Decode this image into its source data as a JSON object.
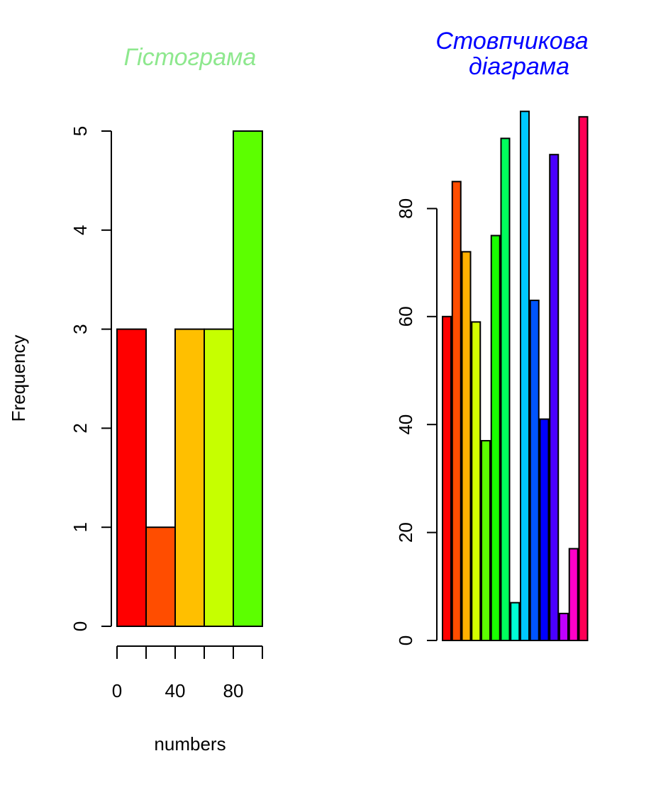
{
  "chart_data": [
    {
      "type": "histogram",
      "title": "Гістограма",
      "title_color": "#8ee88e",
      "xlabel": "numbers",
      "ylabel": "Frequency",
      "bins": [
        {
          "from": 0,
          "to": 20,
          "count": 3,
          "color": "#ff0000"
        },
        {
          "from": 20,
          "to": 40,
          "count": 1,
          "color": "#ff4d00"
        },
        {
          "from": 40,
          "to": 60,
          "count": 3,
          "color": "#ffbf00"
        },
        {
          "from": 60,
          "to": 80,
          "count": 3,
          "color": "#c6ff00"
        },
        {
          "from": 80,
          "to": 100,
          "count": 5,
          "color": "#5cff00"
        }
      ],
      "xlim": [
        0,
        100
      ],
      "ylim": [
        0,
        5
      ],
      "xticks": [
        0,
        20,
        40,
        60,
        80,
        100
      ],
      "xtick_labels": [
        "0",
        "",
        "40",
        "",
        "80",
        ""
      ],
      "yticks": [
        0,
        1,
        2,
        3,
        4,
        5
      ],
      "ytick_labels": [
        "0",
        "1",
        "2",
        "3",
        "4",
        "5"
      ],
      "grid": false
    },
    {
      "type": "bar",
      "title": "Стовпчикова\nдіаграма",
      "title_color": "#0000ff",
      "values": [
        60,
        85,
        72,
        59,
        37,
        75,
        93,
        7,
        98,
        63,
        41,
        90,
        5,
        17,
        97
      ],
      "colors": [
        "#ff0000",
        "#ff4d00",
        "#ffb000",
        "#d4ff00",
        "#5cff00",
        "#1aff00",
        "#00ff5c",
        "#00ffd4",
        "#00c8ff",
        "#0055ff",
        "#0000ff",
        "#4a00ff",
        "#c000ff",
        "#ff00c8",
        "#ff0055"
      ],
      "ylim": [
        0,
        100
      ],
      "yticks": [
        0,
        20,
        40,
        60,
        80
      ],
      "ytick_labels": [
        "0",
        "20",
        "40",
        "60",
        "80"
      ],
      "grid": false
    }
  ]
}
